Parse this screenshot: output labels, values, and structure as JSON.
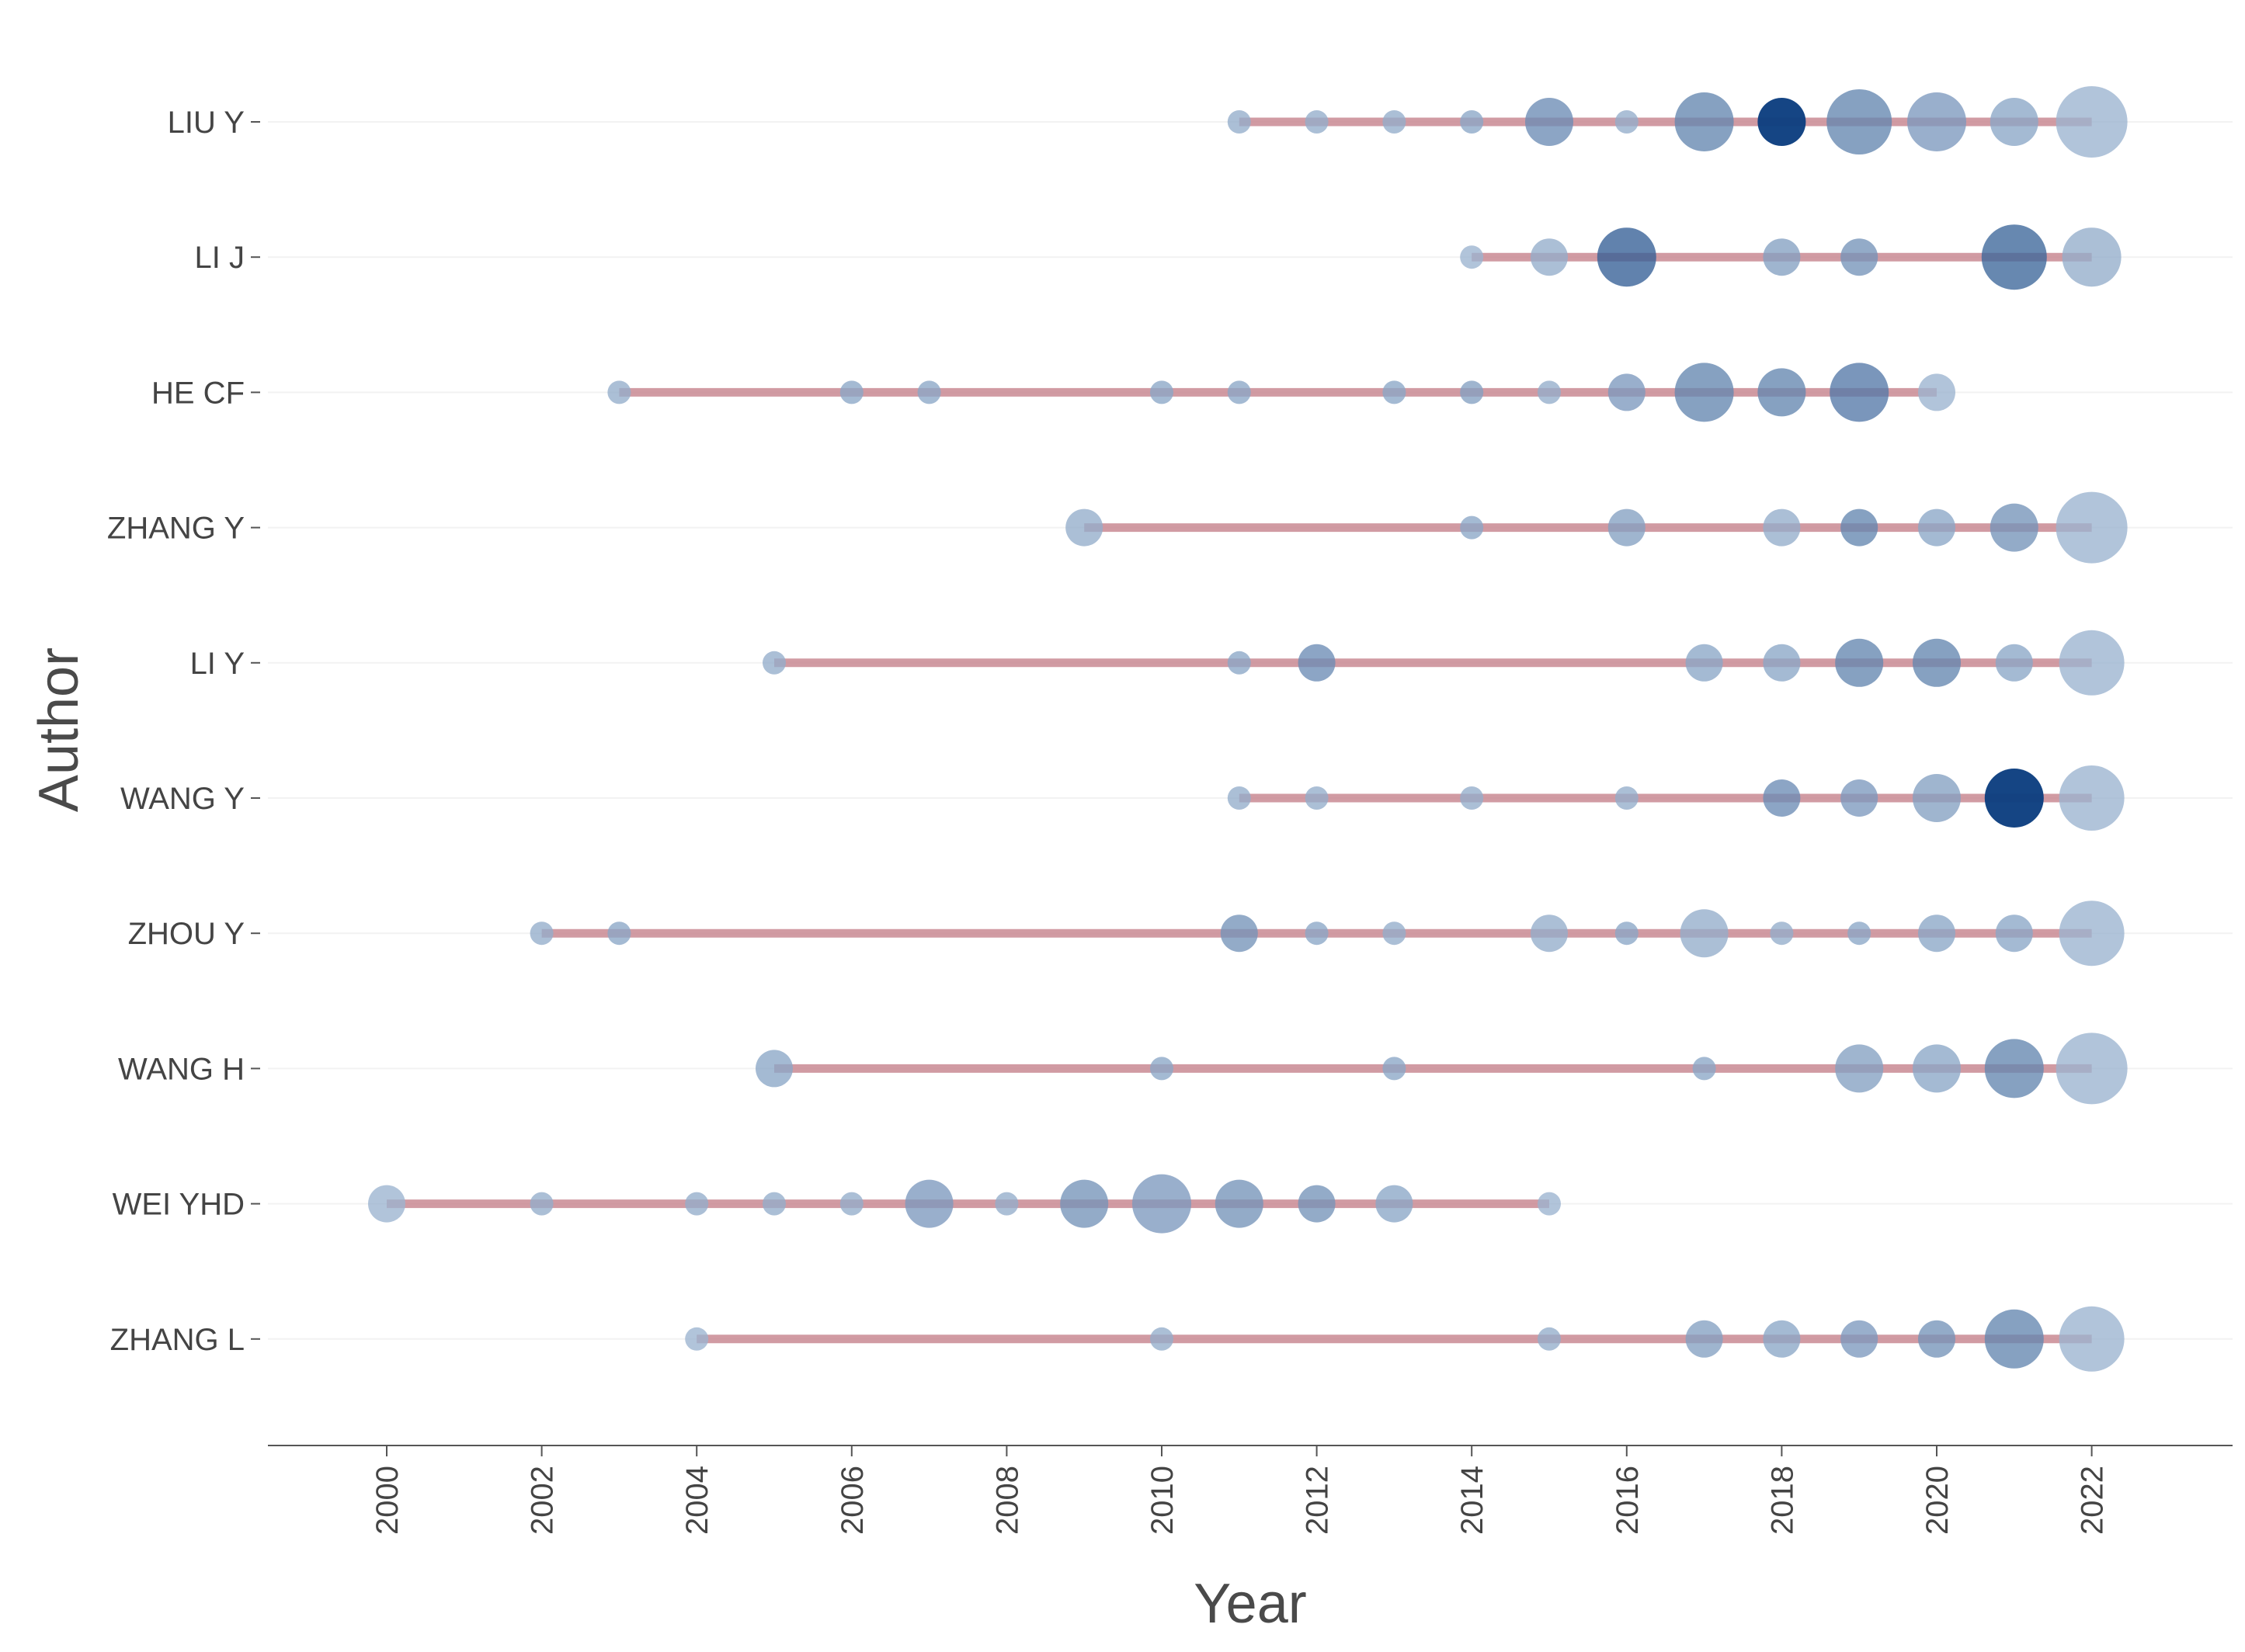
{
  "chart_data": {
    "type": "scatter",
    "subtype": "author-timeline-bubble",
    "xlabel": "Year",
    "ylabel": "Author",
    "xlim": [
      1998.5,
      2023.8
    ],
    "x_ticks": [
      "2000",
      "2002",
      "2004",
      "2006",
      "2008",
      "2010",
      "2012",
      "2014",
      "2016",
      "2018",
      "2020",
      "2022"
    ],
    "colors": {
      "line": "#c98a94",
      "bubble_light": "#a9bdd6",
      "bubble_dark": "#0d3f80",
      "axis": "#555555",
      "text": "#444444"
    },
    "authors": [
      {
        "name": "LIU Y",
        "start": 2011,
        "end": 2022,
        "points": [
          [
            2011,
            1
          ],
          [
            2012,
            1
          ],
          [
            2013,
            1
          ],
          [
            2014,
            1
          ],
          [
            2015,
            3
          ],
          [
            2016,
            1
          ],
          [
            2017,
            4
          ],
          [
            2018,
            3
          ],
          [
            2019,
            5
          ],
          [
            2020,
            4
          ],
          [
            2021,
            3
          ],
          [
            2022,
            6
          ]
        ],
        "intensity": [
          0.15,
          0.15,
          0.15,
          0.2,
          0.4,
          0.15,
          0.45,
          1.0,
          0.45,
          0.3,
          0.2,
          0.1
        ]
      },
      {
        "name": "LI J",
        "start": 2014,
        "end": 2022,
        "points": [
          [
            2014,
            1
          ],
          [
            2016,
            4
          ],
          [
            2018,
            2
          ],
          [
            2019,
            2
          ],
          [
            2021,
            5
          ],
          [
            2022,
            4
          ],
          [
            2015,
            2
          ]
        ],
        "intensity": [
          0.1,
          0.75,
          0.25,
          0.35,
          0.7,
          0.15,
          0.15
        ]
      },
      {
        "name": "HE CF",
        "start": 2003,
        "end": 2020,
        "points": [
          [
            2003,
            1
          ],
          [
            2006,
            1
          ],
          [
            2007,
            1
          ],
          [
            2010,
            1
          ],
          [
            2011,
            1
          ],
          [
            2013,
            1
          ],
          [
            2014,
            1
          ],
          [
            2015,
            1
          ],
          [
            2016,
            2
          ],
          [
            2017,
            4
          ],
          [
            2018,
            3
          ],
          [
            2019,
            4
          ],
          [
            2020,
            2
          ]
        ],
        "intensity": [
          0.15,
          0.2,
          0.2,
          0.2,
          0.2,
          0.2,
          0.25,
          0.15,
          0.3,
          0.45,
          0.45,
          0.55,
          0.1
        ]
      },
      {
        "name": "ZHANG Y",
        "start": 2009,
        "end": 2022,
        "points": [
          [
            2009,
            2
          ],
          [
            2014,
            1
          ],
          [
            2016,
            2
          ],
          [
            2018,
            2
          ],
          [
            2019,
            2
          ],
          [
            2020,
            2
          ],
          [
            2021,
            3
          ],
          [
            2022,
            6
          ]
        ],
        "intensity": [
          0.15,
          0.2,
          0.25,
          0.15,
          0.45,
          0.2,
          0.35,
          0.1
        ]
      },
      {
        "name": "LI Y",
        "start": 2005,
        "end": 2022,
        "points": [
          [
            2005,
            1
          ],
          [
            2011,
            1
          ],
          [
            2012,
            2
          ],
          [
            2017,
            2
          ],
          [
            2018,
            2
          ],
          [
            2019,
            3
          ],
          [
            2020,
            3
          ],
          [
            2021,
            2
          ],
          [
            2022,
            5
          ]
        ],
        "intensity": [
          0.15,
          0.2,
          0.4,
          0.2,
          0.2,
          0.45,
          0.45,
          0.2,
          0.1
        ]
      },
      {
        "name": "WANG Y",
        "start": 2011,
        "end": 2022,
        "points": [
          [
            2011,
            1
          ],
          [
            2012,
            1
          ],
          [
            2014,
            1
          ],
          [
            2016,
            1
          ],
          [
            2018,
            2
          ],
          [
            2019,
            2
          ],
          [
            2020,
            3
          ],
          [
            2021,
            4
          ],
          [
            2022,
            5
          ]
        ],
        "intensity": [
          0.15,
          0.15,
          0.15,
          0.15,
          0.4,
          0.3,
          0.25,
          1.0,
          0.1
        ]
      },
      {
        "name": "ZHOU Y",
        "start": 2002,
        "end": 2022,
        "points": [
          [
            2002,
            1
          ],
          [
            2003,
            1
          ],
          [
            2011,
            2
          ],
          [
            2012,
            1
          ],
          [
            2013,
            1
          ],
          [
            2015,
            2
          ],
          [
            2016,
            1
          ],
          [
            2017,
            3
          ],
          [
            2018,
            1
          ],
          [
            2019,
            1
          ],
          [
            2020,
            2
          ],
          [
            2021,
            2
          ],
          [
            2022,
            5
          ]
        ],
        "intensity": [
          0.15,
          0.2,
          0.35,
          0.2,
          0.15,
          0.15,
          0.2,
          0.15,
          0.15,
          0.2,
          0.2,
          0.2,
          0.1
        ]
      },
      {
        "name": "WANG H",
        "start": 2005,
        "end": 2022,
        "points": [
          [
            2005,
            2
          ],
          [
            2010,
            1
          ],
          [
            2013,
            1
          ],
          [
            2017,
            1
          ],
          [
            2019,
            3
          ],
          [
            2020,
            3
          ],
          [
            2021,
            4
          ],
          [
            2022,
            6
          ]
        ],
        "intensity": [
          0.2,
          0.2,
          0.2,
          0.2,
          0.25,
          0.2,
          0.45,
          0.1
        ]
      },
      {
        "name": "WEI YHD",
        "start": 2000,
        "end": 2015,
        "points": [
          [
            2000,
            2
          ],
          [
            2002,
            1
          ],
          [
            2004,
            1
          ],
          [
            2005,
            1
          ],
          [
            2006,
            1
          ],
          [
            2007,
            3
          ],
          [
            2008,
            1
          ],
          [
            2009,
            3
          ],
          [
            2010,
            4
          ],
          [
            2011,
            3
          ],
          [
            2012,
            2
          ],
          [
            2013,
            2
          ],
          [
            2015,
            1
          ]
        ],
        "intensity": [
          0.1,
          0.15,
          0.15,
          0.15,
          0.15,
          0.3,
          0.15,
          0.35,
          0.3,
          0.35,
          0.35,
          0.2,
          0.1
        ]
      },
      {
        "name": "ZHANG L",
        "start": 2004,
        "end": 2022,
        "points": [
          [
            2004,
            1
          ],
          [
            2010,
            1
          ],
          [
            2015,
            1
          ],
          [
            2017,
            2
          ],
          [
            2018,
            2
          ],
          [
            2019,
            2
          ],
          [
            2020,
            2
          ],
          [
            2021,
            4
          ],
          [
            2022,
            5
          ]
        ],
        "intensity": [
          0.1,
          0.15,
          0.15,
          0.25,
          0.2,
          0.3,
          0.35,
          0.45,
          0.1
        ]
      }
    ]
  }
}
